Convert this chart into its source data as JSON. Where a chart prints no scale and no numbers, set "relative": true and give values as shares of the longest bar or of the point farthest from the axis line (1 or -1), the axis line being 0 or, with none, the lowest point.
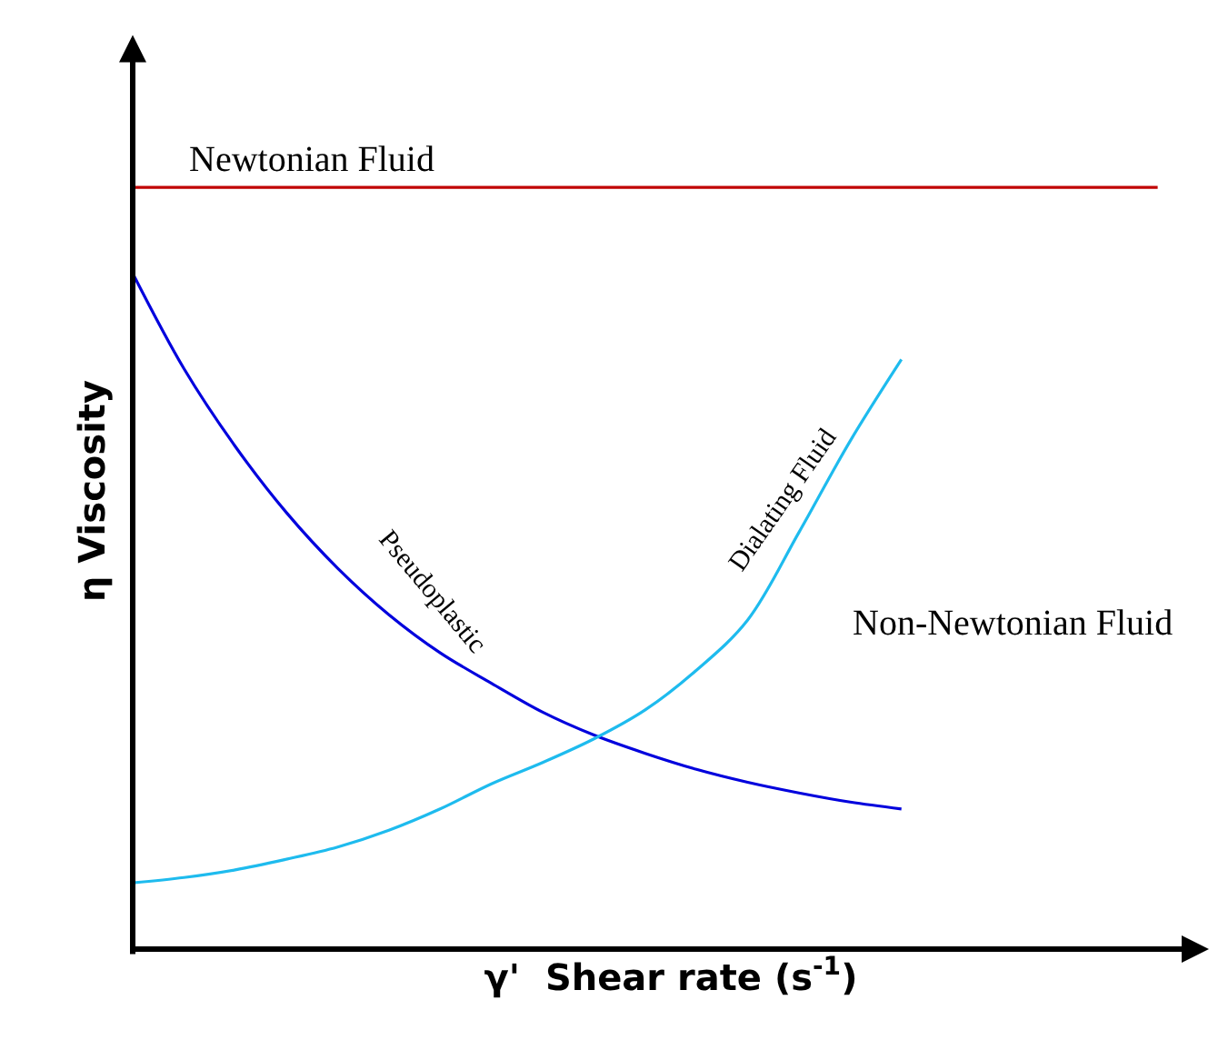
{
  "chart_data": {
    "type": "line",
    "relative": true,
    "xlabel": "γ'  Shear rate (s$^{-1}$)",
    "ylabel": "η Viscosity",
    "legend": false,
    "marker": "none",
    "line_style": "solid",
    "categories": [
      null,
      null,
      null,
      null,
      null,
      null,
      null,
      null,
      null,
      null,
      null,
      null,
      null,
      null,
      null,
      null,
      null,
      null,
      null,
      null,
      null
    ],
    "series": [
      {
        "name": "Newtonian Fluid",
        "color": "#c00000",
        "values": [
          1,
          1,
          1,
          1,
          1,
          1,
          1,
          1,
          1,
          1,
          1,
          1,
          1,
          1,
          1,
          1,
          1,
          1,
          1,
          1,
          1
        ]
      },
      {
        "name": "Pseudoplastic",
        "color": "#0000dd",
        "values": [
          0.887,
          0.762,
          0.66,
          0.573,
          0.5,
          0.439,
          0.389,
          0.349,
          0.311,
          0.281,
          0.257,
          0.236,
          0.219,
          0.205,
          0.193,
          0.184,
          null,
          null,
          null,
          null,
          null
        ]
      },
      {
        "name": "Dialating Fluid",
        "color": "#1ebbee",
        "values": [
          0.087,
          0.094,
          0.104,
          0.118,
          0.134,
          0.156,
          0.184,
          0.217,
          0.245,
          0.276,
          0.314,
          0.366,
          0.432,
          0.547,
          0.667,
          0.774,
          null,
          null,
          null,
          null,
          null
        ]
      }
    ],
    "annotations": [
      "Non-Newtonian Fluid"
    ]
  }
}
